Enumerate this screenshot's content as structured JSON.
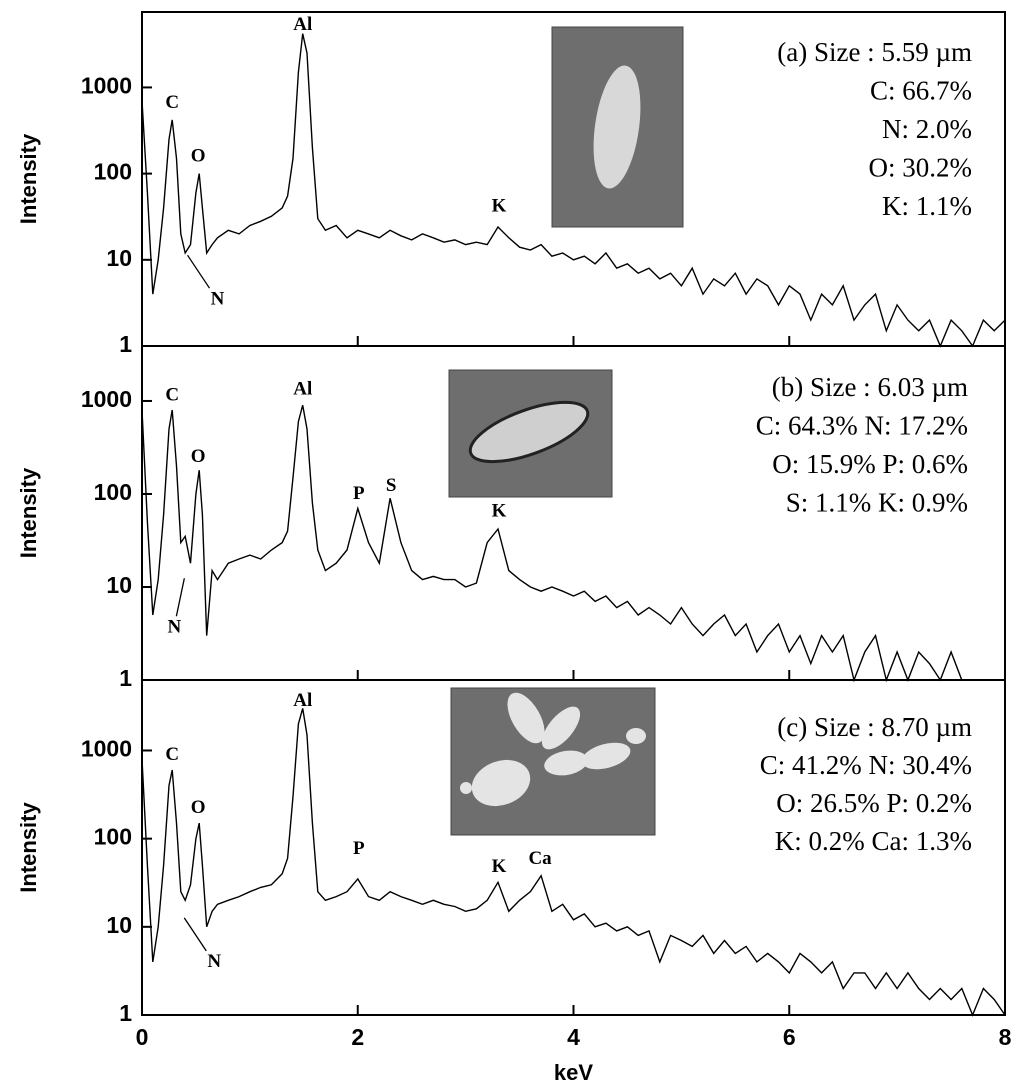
{
  "chart_data": [
    {
      "type": "line",
      "ylabel": "Intensity",
      "log_y": true,
      "color": "#000000",
      "xlim": [
        0,
        8
      ],
      "xticks": [
        0,
        2,
        4,
        6,
        8
      ],
      "ylim": [
        1,
        7500
      ],
      "yticks": [
        1,
        10,
        100,
        1000
      ],
      "x": [
        0,
        0.05,
        0.1,
        0.15,
        0.2,
        0.25,
        0.28,
        0.32,
        0.36,
        0.4,
        0.45,
        0.5,
        0.53,
        0.56,
        0.6,
        0.65,
        0.7,
        0.8,
        0.9,
        1.0,
        1.1,
        1.2,
        1.3,
        1.35,
        1.4,
        1.45,
        1.49,
        1.53,
        1.58,
        1.63,
        1.7,
        1.8,
        1.9,
        2.0,
        2.1,
        2.2,
        2.3,
        2.4,
        2.5,
        2.6,
        2.7,
        2.8,
        2.9,
        3.0,
        3.1,
        3.2,
        3.3,
        3.4,
        3.5,
        3.6,
        3.7,
        3.8,
        3.9,
        4.0,
        4.1,
        4.2,
        4.3,
        4.4,
        4.5,
        4.6,
        4.7,
        4.8,
        4.9,
        5.0,
        5.1,
        5.2,
        5.3,
        5.4,
        5.5,
        5.6,
        5.7,
        5.8,
        5.9,
        6.0,
        6.1,
        6.2,
        6.3,
        6.4,
        6.5,
        6.6,
        6.7,
        6.8,
        6.9,
        7.0,
        7.1,
        7.2,
        7.3,
        7.4,
        7.5,
        7.6,
        7.7,
        7.8,
        7.9,
        8.0
      ],
      "values": [
        700,
        60,
        4,
        10,
        40,
        250,
        420,
        150,
        20,
        12,
        15,
        60,
        100,
        40,
        12,
        15,
        18,
        22,
        20,
        25,
        28,
        32,
        40,
        55,
        150,
        1500,
        4200,
        2500,
        200,
        30,
        22,
        25,
        18,
        22,
        20,
        18,
        22,
        19,
        17,
        20,
        18,
        16,
        17,
        15,
        16,
        15,
        24,
        18,
        14,
        13,
        15,
        11,
        12,
        10,
        11,
        9,
        12,
        8,
        9,
        7,
        8,
        6,
        7,
        5,
        8,
        4,
        6,
        5,
        7,
        4,
        6,
        5,
        3,
        5,
        4,
        2,
        4,
        3,
        5,
        2,
        3,
        4,
        1.5,
        3,
        2,
        1.5,
        2,
        1,
        2,
        1.5,
        1,
        2,
        1.5,
        2
      ],
      "annotations": [
        {
          "text": "C",
          "x": 0.28,
          "y": 650
        },
        {
          "text": "O",
          "x": 0.52,
          "y": 155
        },
        {
          "text": "N",
          "x": 0.7,
          "y": 3.4
        },
        {
          "text": "Al",
          "x": 1.49,
          "y": 5200
        },
        {
          "text": "K",
          "x": 3.31,
          "y": 41
        }
      ],
      "info": [
        "(a) Size : 5.59 µm",
        "C: 66.7%",
        "N: 2.0%",
        "O: 30.2%",
        "K: 1.1%"
      ]
    },
    {
      "type": "line",
      "ylabel": "Intensity",
      "log_y": true,
      "color": "#000000",
      "xlim": [
        0,
        8
      ],
      "xticks": [
        0,
        2,
        4,
        6,
        8
      ],
      "ylim": [
        1,
        3900
      ],
      "yticks": [
        1,
        10,
        100,
        1000
      ],
      "x": [
        0,
        0.05,
        0.1,
        0.15,
        0.2,
        0.25,
        0.28,
        0.32,
        0.36,
        0.4,
        0.45,
        0.5,
        0.53,
        0.56,
        0.6,
        0.65,
        0.7,
        0.8,
        0.9,
        1.0,
        1.1,
        1.2,
        1.3,
        1.35,
        1.4,
        1.45,
        1.49,
        1.53,
        1.58,
        1.63,
        1.7,
        1.8,
        1.9,
        2.0,
        2.1,
        2.2,
        2.3,
        2.4,
        2.5,
        2.6,
        2.7,
        2.8,
        2.9,
        3.0,
        3.1,
        3.2,
        3.3,
        3.4,
        3.5,
        3.6,
        3.7,
        3.8,
        3.9,
        4.0,
        4.1,
        4.2,
        4.3,
        4.4,
        4.5,
        4.6,
        4.7,
        4.8,
        4.9,
        5.0,
        5.1,
        5.2,
        5.3,
        5.4,
        5.5,
        5.6,
        5.7,
        5.8,
        5.9,
        6.0,
        6.1,
        6.2,
        6.3,
        6.4,
        6.5,
        6.6,
        6.7,
        6.8,
        6.9,
        7.0,
        7.1,
        7.2,
        7.3,
        7.4,
        7.5,
        7.6,
        7.7,
        7.8,
        7.9,
        8.0
      ],
      "values": [
        800,
        50,
        5,
        12,
        60,
        500,
        800,
        200,
        30,
        35,
        18,
        100,
        180,
        60,
        3,
        15,
        12,
        18,
        20,
        22,
        20,
        25,
        30,
        40,
        150,
        600,
        900,
        500,
        80,
        25,
        15,
        18,
        25,
        70,
        30,
        18,
        90,
        30,
        15,
        12,
        13,
        12,
        12,
        10,
        11,
        30,
        42,
        15,
        12,
        10,
        9,
        10,
        9,
        8,
        9,
        7,
        8,
        6,
        7,
        5,
        6,
        5,
        4,
        6,
        4,
        3,
        4,
        5,
        3,
        4,
        2,
        3,
        4,
        2,
        3,
        1.5,
        3,
        2,
        3,
        1,
        2,
        3,
        1,
        2,
        1,
        2,
        1.5,
        1,
        2,
        1,
        1,
        1,
        1,
        1
      ],
      "annotations": [
        {
          "text": "C",
          "x": 0.28,
          "y": 1130
        },
        {
          "text": "O",
          "x": 0.52,
          "y": 245
        },
        {
          "text": "N",
          "x": 0.3,
          "y": 3.6
        },
        {
          "text": "Al",
          "x": 1.49,
          "y": 1300
        },
        {
          "text": "P",
          "x": 2.01,
          "y": 98
        },
        {
          "text": "S",
          "x": 2.31,
          "y": 120
        },
        {
          "text": "K",
          "x": 3.31,
          "y": 64
        }
      ],
      "info": [
        "(b) Size : 6.03 µm",
        "C: 64.3% N: 17.2%",
        "O: 15.9% P: 0.6%",
        "S: 1.1% K: 0.9%"
      ]
    },
    {
      "type": "line",
      "ylabel": "Intensity",
      "xlabel": "keV",
      "log_y": true,
      "color": "#000000",
      "xlim": [
        0,
        8
      ],
      "xticks": [
        0,
        2,
        4,
        6,
        8
      ],
      "ylim": [
        1,
        6300
      ],
      "yticks": [
        1,
        10,
        100,
        1000
      ],
      "x": [
        0,
        0.05,
        0.1,
        0.15,
        0.2,
        0.25,
        0.28,
        0.32,
        0.36,
        0.4,
        0.45,
        0.5,
        0.53,
        0.56,
        0.6,
        0.65,
        0.7,
        0.8,
        0.9,
        1.0,
        1.1,
        1.2,
        1.3,
        1.35,
        1.4,
        1.45,
        1.49,
        1.53,
        1.58,
        1.63,
        1.7,
        1.8,
        1.9,
        2.0,
        2.1,
        2.2,
        2.3,
        2.4,
        2.5,
        2.6,
        2.7,
        2.8,
        2.9,
        3.0,
        3.1,
        3.2,
        3.3,
        3.4,
        3.5,
        3.6,
        3.7,
        3.8,
        3.9,
        4.0,
        4.1,
        4.2,
        4.3,
        4.4,
        4.5,
        4.6,
        4.7,
        4.8,
        4.9,
        5.0,
        5.1,
        5.2,
        5.3,
        5.4,
        5.5,
        5.6,
        5.7,
        5.8,
        5.9,
        6.0,
        6.1,
        6.2,
        6.3,
        6.4,
        6.5,
        6.6,
        6.7,
        6.8,
        6.9,
        7.0,
        7.1,
        7.2,
        7.3,
        7.4,
        7.5,
        7.6,
        7.7,
        7.8,
        7.9,
        8.0
      ],
      "values": [
        800,
        50,
        4,
        10,
        50,
        400,
        600,
        150,
        25,
        20,
        30,
        100,
        150,
        50,
        10,
        15,
        18,
        20,
        22,
        25,
        28,
        30,
        40,
        60,
        300,
        2000,
        3000,
        1500,
        150,
        25,
        20,
        22,
        25,
        35,
        22,
        20,
        25,
        22,
        20,
        18,
        20,
        18,
        17,
        15,
        16,
        20,
        32,
        15,
        20,
        25,
        38,
        15,
        18,
        12,
        14,
        10,
        11,
        9,
        10,
        8,
        9,
        4,
        8,
        7,
        6,
        8,
        5,
        7,
        5,
        6,
        4,
        5,
        4,
        3,
        5,
        4,
        3,
        4,
        2,
        3,
        3,
        2,
        3,
        2,
        3,
        2,
        1.5,
        2,
        1.5,
        2,
        1,
        2,
        1.5,
        1
      ],
      "annotations": [
        {
          "text": "C",
          "x": 0.28,
          "y": 870
        },
        {
          "text": "O",
          "x": 0.52,
          "y": 220
        },
        {
          "text": "N",
          "x": 0.67,
          "y": 3.9
        },
        {
          "text": "Al",
          "x": 1.49,
          "y": 3600
        },
        {
          "text": "P",
          "x": 2.01,
          "y": 75
        },
        {
          "text": "K",
          "x": 3.31,
          "y": 47
        },
        {
          "text": "Ca",
          "x": 3.69,
          "y": 58
        }
      ],
      "info": [
        "(c) Size : 8.70 µm",
        "C: 41.2% N: 30.4%",
        "O: 26.5% P: 0.2%",
        "K: 0.2% Ca: 1.3%"
      ]
    }
  ]
}
